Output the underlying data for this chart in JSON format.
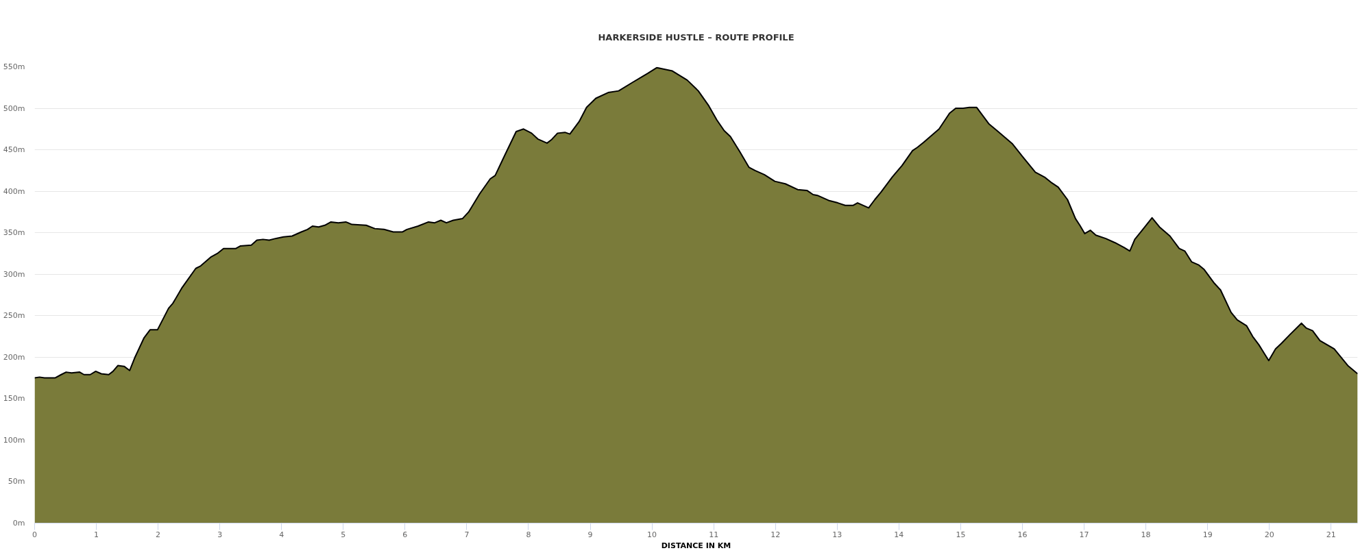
{
  "chart_data": {
    "type": "area",
    "title": "HARKERSIDE HUSTLE – ROUTE PROFILE",
    "xlabel": "DISTANCE IN KM",
    "x": [
      0,
      0.08,
      0.16,
      0.33,
      0.43,
      0.51,
      0.6,
      0.73,
      0.8,
      0.9,
      0.99,
      1.08,
      1.2,
      1.27,
      1.35,
      1.45,
      1.54,
      1.62,
      1.77,
      1.87,
      1.99,
      2.17,
      2.24,
      2.39,
      2.61,
      2.69,
      2.86,
      2.96,
      3.06,
      3.26,
      3.33,
      3.51,
      3.6,
      3.7,
      3.8,
      3.9,
      4.03,
      4.17,
      4.32,
      4.42,
      4.5,
      4.6,
      4.7,
      4.8,
      4.92,
      5.04,
      5.14,
      5.37,
      5.51,
      5.66,
      5.81,
      5.96,
      6.03,
      6.21,
      6.38,
      6.48,
      6.58,
      6.67,
      6.78,
      6.93,
      7.03,
      7.21,
      7.38,
      7.46,
      7.6,
      7.8,
      7.92,
      8.05,
      8.15,
      8.3,
      8.37,
      8.47,
      8.59,
      8.67,
      8.82,
      8.94,
      9.09,
      9.29,
      9.46,
      9.68,
      9.86,
      9.93,
      10.08,
      10.33,
      10.57,
      10.75,
      10.92,
      11.05,
      11.17,
      11.27,
      11.42,
      11.57,
      11.67,
      11.82,
      11.99,
      12.16,
      12.36,
      12.51,
      12.61,
      12.68,
      12.86,
      13.01,
      13.13,
      13.26,
      13.33,
      13.51,
      13.61,
      13.71,
      13.89,
      14.05,
      14.22,
      14.3,
      14.4,
      14.65,
      14.82,
      14.92,
      15.04,
      15.14,
      15.26,
      15.46,
      15.59,
      15.84,
      16.01,
      16.21,
      16.36,
      16.46,
      16.58,
      16.73,
      16.86,
      16.93,
      17.01,
      17.1,
      17.19,
      17.35,
      17.5,
      17.65,
      17.74,
      17.82,
      17.95,
      18.1,
      18.22,
      18.39,
      18.54,
      18.63,
      18.74,
      18.86,
      18.94,
      19.11,
      19.21,
      19.38,
      19.48,
      19.63,
      19.73,
      19.83,
      19.99,
      20.1,
      20.2,
      20.33,
      20.52,
      20.6,
      20.7,
      20.82,
      21.05,
      21.27,
      21.43
    ],
    "values": [
      175,
      176,
      175,
      175,
      179,
      182,
      181,
      182,
      179,
      179,
      183,
      180,
      179,
      183,
      190,
      189,
      184,
      199,
      223,
      233,
      233,
      259,
      265,
      284,
      307,
      310,
      321,
      325,
      331,
      331,
      334,
      335,
      341,
      342,
      341,
      343,
      345,
      346,
      351,
      354,
      358,
      357,
      359,
      363,
      362,
      363,
      360,
      359,
      355,
      354,
      351,
      351,
      354,
      358,
      363,
      362,
      365,
      362,
      365,
      367,
      375,
      397,
      415,
      419,
      441,
      472,
      475,
      470,
      463,
      458,
      462,
      470,
      471,
      469,
      484,
      501,
      512,
      519,
      521,
      531,
      539,
      542,
      549,
      545,
      534,
      521,
      503,
      486,
      473,
      466,
      448,
      429,
      425,
      420,
      412,
      409,
      402,
      401,
      396,
      395,
      389,
      386,
      383,
      383,
      386,
      380,
      390,
      399,
      417,
      431,
      449,
      453,
      459,
      475,
      494,
      500,
      500,
      501,
      501,
      481,
      473,
      457,
      441,
      423,
      417,
      411,
      405,
      390,
      367,
      359,
      349,
      353,
      347,
      343,
      338,
      332,
      328,
      342,
      354,
      368,
      357,
      346,
      331,
      328,
      315,
      311,
      306,
      289,
      281,
      254,
      245,
      238,
      225,
      215,
      196,
      210,
      217,
      227,
      241,
      235,
      232,
      220,
      210,
      190,
      180
    ],
    "color": "#7a7b3a",
    "xlim": [
      0,
      21.43
    ],
    "ylim": [
      0,
      550
    ],
    "xticks": [
      0,
      1,
      2,
      3,
      4,
      5,
      6,
      7,
      8,
      9,
      10,
      11,
      12,
      13,
      14,
      15,
      16,
      17,
      18,
      19,
      20,
      21
    ],
    "yticks": [
      {
        "value": 0,
        "label": "0m"
      },
      {
        "value": 50,
        "label": "50m"
      },
      {
        "value": 100,
        "label": "100m"
      },
      {
        "value": 150,
        "label": "150m"
      },
      {
        "value": 200,
        "label": "200m"
      },
      {
        "value": 250,
        "label": "250m"
      },
      {
        "value": 300,
        "label": "300m"
      },
      {
        "value": 350,
        "label": "350m"
      },
      {
        "value": 400,
        "label": "400m"
      },
      {
        "value": 450,
        "label": "450m"
      },
      {
        "value": 500,
        "label": "500m"
      },
      {
        "value": 550,
        "label": "550m"
      }
    ],
    "grid": "y"
  }
}
